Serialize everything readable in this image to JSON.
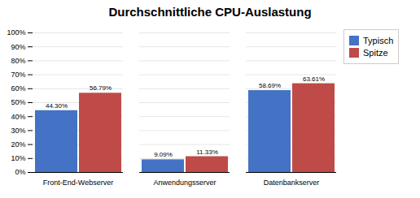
{
  "chart_data": {
    "type": "bar",
    "title": "Durchschnittliche CPU-Auslastung",
    "categories": [
      "Front-End-Webserver",
      "Anwendungsserver",
      "Datenbankserver"
    ],
    "series": [
      {
        "name": "Typisch",
        "color": "#4472C4",
        "values": [
          44.3,
          9.09,
          58.69
        ],
        "value_labels": [
          "44.30%",
          "9.09%",
          "58.69%"
        ]
      },
      {
        "name": "Spitze",
        "color": "#BE4B48",
        "values": [
          56.79,
          11.33,
          63.61
        ],
        "value_labels": [
          "56.79%",
          "11.33%",
          "63.61%"
        ]
      }
    ],
    "ylim": [
      0,
      100
    ],
    "yticks": [
      {
        "value": 0,
        "label": "0%"
      },
      {
        "value": 10,
        "label": "10%"
      },
      {
        "value": 20,
        "label": "20%"
      },
      {
        "value": 30,
        "label": "30%"
      },
      {
        "value": 40,
        "label": "40%"
      },
      {
        "value": 50,
        "label": "50%"
      },
      {
        "value": 60,
        "label": "60%"
      },
      {
        "value": 70,
        "label": "70%"
      },
      {
        "value": 80,
        "label": "80%"
      },
      {
        "value": 90,
        "label": "90%"
      },
      {
        "value": 100,
        "label": "100%"
      }
    ],
    "grid": true,
    "data_labels": true,
    "legend": "right"
  }
}
